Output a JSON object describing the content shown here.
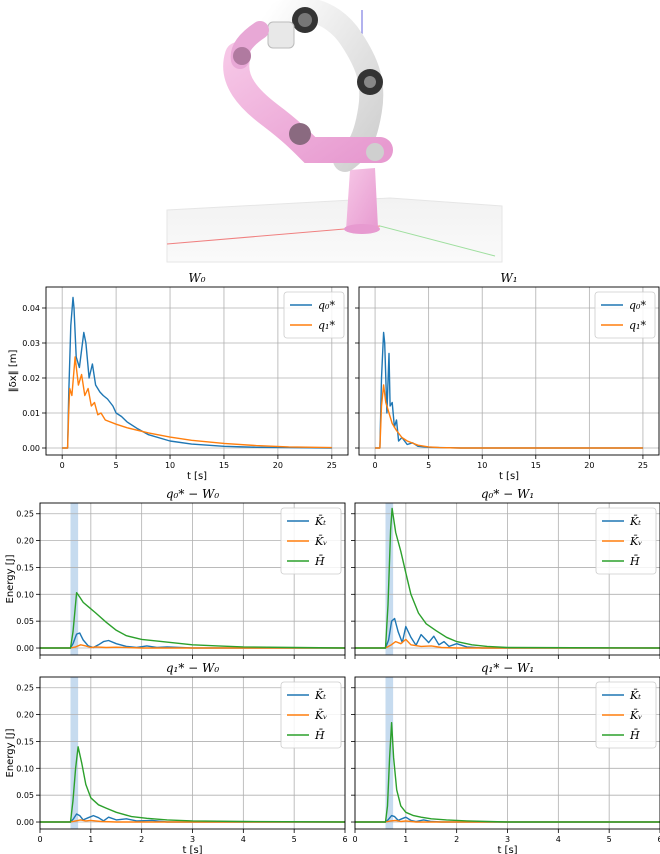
{
  "colors": {
    "blue": "#1f77b4",
    "orange": "#ff7f0e",
    "green": "#2ca02c",
    "grid": "#b0b0b0",
    "shade": "#c6dbef"
  },
  "robot_scene": {
    "icon": "robot-arm-render"
  },
  "chart_data": [
    {
      "type": "line",
      "title": "W₀",
      "ylabel": "‖δx‖ [m]",
      "xlabel": "t [s]",
      "xlim": [
        -1.5,
        26.5
      ],
      "ylim": [
        -0.002,
        0.046
      ],
      "xticks": [
        "0",
        "5",
        "10",
        "15",
        "20",
        "25"
      ],
      "yticks": [
        "0.00",
        "0.01",
        "0.02",
        "0.03",
        "0.04"
      ],
      "legend": "top-right",
      "grid": true,
      "series": [
        {
          "name": "q₀*",
          "color": "blue",
          "x": [
            0,
            0.5,
            0.6,
            0.8,
            1.0,
            1.1,
            1.3,
            1.6,
            2.0,
            2.2,
            2.5,
            2.8,
            3.1,
            3.5,
            3.8,
            4.2,
            4.7,
            5.0,
            5.5,
            6.0,
            7.0,
            8.0,
            10.0,
            12.0,
            15.0,
            18.0,
            21.0,
            25.0
          ],
          "y": [
            0,
            0,
            0.015,
            0.035,
            0.043,
            0.04,
            0.026,
            0.023,
            0.033,
            0.03,
            0.02,
            0.024,
            0.018,
            0.016,
            0.015,
            0.014,
            0.012,
            0.01,
            0.009,
            0.0075,
            0.0055,
            0.0038,
            0.002,
            0.0011,
            0.0005,
            0.0002,
            0.0001,
            0
          ]
        },
        {
          "name": "q₁*",
          "color": "orange",
          "x": [
            0,
            0.5,
            0.6,
            0.7,
            0.9,
            1.2,
            1.5,
            1.8,
            2.1,
            2.4,
            2.7,
            3.0,
            3.3,
            3.6,
            4.0,
            5.0,
            6.0,
            8.0,
            10.0,
            12.0,
            15.0,
            18.0,
            21.0,
            25.0
          ],
          "y": [
            0,
            0,
            0.01,
            0.017,
            0.015,
            0.026,
            0.018,
            0.021,
            0.015,
            0.017,
            0.012,
            0.013,
            0.0095,
            0.01,
            0.008,
            0.0068,
            0.0058,
            0.0043,
            0.0031,
            0.0022,
            0.0013,
            0.0007,
            0.0003,
            0.0001
          ]
        }
      ]
    },
    {
      "type": "line",
      "title": "W₁",
      "ylabel": "",
      "xlabel": "t [s]",
      "xlim": [
        -1.5,
        26.5
      ],
      "ylim": [
        -0.002,
        0.046
      ],
      "xticks": [
        "0",
        "5",
        "10",
        "15",
        "20",
        "25"
      ],
      "yticks": [],
      "legend": "top-right",
      "grid": true,
      "series": [
        {
          "name": "q₀*",
          "color": "blue",
          "x": [
            0,
            0.45,
            0.6,
            0.8,
            0.9,
            1.1,
            1.3,
            1.4,
            1.6,
            1.8,
            2.0,
            2.2,
            2.5,
            3.0,
            3.5,
            4.0,
            5.0,
            6.0,
            8.0,
            25.0
          ],
          "y": [
            0,
            0,
            0.02,
            0.033,
            0.03,
            0.01,
            0.027,
            0.012,
            0.013,
            0.006,
            0.008,
            0.002,
            0.003,
            0.001,
            0.0015,
            0.0005,
            0.0002,
            0.0001,
            0,
            0
          ]
        },
        {
          "name": "q₁*",
          "color": "orange",
          "x": [
            0,
            0.45,
            0.6,
            0.8,
            1.0,
            1.3,
            1.6,
            2.0,
            2.5,
            3.0,
            4.0,
            5.0,
            6.0,
            8.0,
            25.0
          ],
          "y": [
            0,
            0,
            0.012,
            0.018,
            0.013,
            0.01,
            0.007,
            0.005,
            0.003,
            0.002,
            0.0008,
            0.0003,
            0.0001,
            0,
            0
          ]
        }
      ]
    },
    {
      "type": "line",
      "title": "q₀* − W₀",
      "ylabel": "Energy [J]",
      "xlabel": "",
      "xlim": [
        0,
        6
      ],
      "ylim": [
        -0.013,
        0.27
      ],
      "xticks": [],
      "yticks": [
        "0.00",
        "0.05",
        "0.10",
        "0.15",
        "0.20",
        "0.25"
      ],
      "shaded_span": [
        0.6,
        0.75
      ],
      "legend": "top-right",
      "grid": true,
      "series": [
        {
          "name": "K̄ₜ",
          "color": "blue",
          "x": [
            0,
            0.6,
            0.65,
            0.72,
            0.78,
            0.85,
            0.95,
            1.05,
            1.15,
            1.25,
            1.35,
            1.5,
            1.7,
            1.9,
            2.1,
            2.3,
            2.5,
            3.0,
            6.0
          ],
          "y": [
            0,
            0,
            0.008,
            0.026,
            0.028,
            0.015,
            0.004,
            0.001,
            0.006,
            0.012,
            0.014,
            0.008,
            0.003,
            0.001,
            0.004,
            0.001,
            0.002,
            0,
            0
          ]
        },
        {
          "name": "K̄ᵥ",
          "color": "orange",
          "x": [
            0,
            0.6,
            0.7,
            0.8,
            0.9,
            1.0,
            1.1,
            1.3,
            1.5,
            2.0,
            6.0
          ],
          "y": [
            0,
            0,
            0.002,
            0.006,
            0.004,
            0.001,
            0.002,
            0.001,
            0.0015,
            0,
            0
          ]
        },
        {
          "name": "H̄̄",
          "color": "green",
          "x": [
            0,
            0.6,
            0.65,
            0.72,
            0.78,
            0.85,
            0.95,
            1.1,
            1.3,
            1.5,
            1.7,
            2.0,
            2.4,
            3.0,
            3.5,
            4.0,
            5.0,
            6.0
          ],
          "y": [
            0,
            0,
            0.03,
            0.103,
            0.095,
            0.085,
            0.077,
            0.065,
            0.048,
            0.033,
            0.023,
            0.016,
            0.012,
            0.006,
            0.004,
            0.002,
            0.001,
            0
          ]
        }
      ]
    },
    {
      "type": "line",
      "title": "q₀* − W₁",
      "ylabel": "",
      "xlabel": "",
      "xlim": [
        0,
        6
      ],
      "ylim": [
        -0.013,
        0.27
      ],
      "xticks": [],
      "yticks": [],
      "shaded_span": [
        0.6,
        0.75
      ],
      "legend": "top-right",
      "grid": true,
      "series": [
        {
          "name": "K̄ₜ",
          "color": "blue",
          "x": [
            0,
            0.6,
            0.66,
            0.72,
            0.78,
            0.85,
            0.93,
            1.0,
            1.1,
            1.2,
            1.3,
            1.45,
            1.55,
            1.65,
            1.75,
            1.85,
            2.0,
            2.2,
            2.5,
            6.0
          ],
          "y": [
            0,
            0,
            0.015,
            0.05,
            0.055,
            0.03,
            0.01,
            0.04,
            0.02,
            0.005,
            0.025,
            0.01,
            0.022,
            0.006,
            0.012,
            0.003,
            0.008,
            0.002,
            0,
            0
          ]
        },
        {
          "name": "K̄ᵥ",
          "color": "orange",
          "x": [
            0,
            0.6,
            0.7,
            0.8,
            0.9,
            1.0,
            1.1,
            1.3,
            1.5,
            1.7,
            2.0,
            6.0
          ],
          "y": [
            0,
            0,
            0.005,
            0.012,
            0.008,
            0.016,
            0.006,
            0.003,
            0.004,
            0.001,
            0,
            0
          ]
        },
        {
          "name": "H̄̄",
          "color": "green",
          "x": [
            0,
            0.6,
            0.65,
            0.7,
            0.73,
            0.8,
            0.9,
            1.0,
            1.1,
            1.25,
            1.4,
            1.6,
            1.8,
            2.0,
            2.3,
            2.6,
            3.0,
            6.0
          ],
          "y": [
            0,
            0,
            0.08,
            0.22,
            0.26,
            0.215,
            0.18,
            0.14,
            0.1,
            0.065,
            0.045,
            0.032,
            0.02,
            0.012,
            0.006,
            0.003,
            0.001,
            0
          ]
        }
      ]
    },
    {
      "type": "line",
      "title": "q₁* − W₀",
      "ylabel": "Energy [J]",
      "xlabel": "t [s]",
      "xlim": [
        0,
        6
      ],
      "ylim": [
        -0.013,
        0.27
      ],
      "xticks": [
        "0",
        "1",
        "2",
        "3",
        "4",
        "5",
        "6"
      ],
      "yticks": [
        "0.00",
        "0.05",
        "0.10",
        "0.15",
        "0.20",
        "0.25"
      ],
      "shaded_span": [
        0.6,
        0.75
      ],
      "legend": "top-right",
      "grid": true,
      "series": [
        {
          "name": "K̄ₜ",
          "color": "blue",
          "x": [
            0,
            0.6,
            0.66,
            0.72,
            0.78,
            0.85,
            0.95,
            1.05,
            1.15,
            1.25,
            1.35,
            1.5,
            1.7,
            1.9,
            2.2,
            2.5,
            6.0
          ],
          "y": [
            0,
            0,
            0.006,
            0.015,
            0.012,
            0.004,
            0.008,
            0.012,
            0.008,
            0.002,
            0.009,
            0.004,
            0.006,
            0.002,
            0.003,
            0,
            0
          ]
        },
        {
          "name": "K̄ᵥ",
          "color": "orange",
          "x": [
            0,
            0.6,
            0.7,
            0.8,
            0.9,
            1.0,
            1.2,
            1.5,
            6.0
          ],
          "y": [
            0,
            0,
            0.002,
            0.004,
            0.002,
            0.003,
            0.001,
            0,
            0
          ]
        },
        {
          "name": "H̄̄",
          "color": "green",
          "x": [
            0,
            0.6,
            0.65,
            0.7,
            0.75,
            0.82,
            0.9,
            1.0,
            1.15,
            1.3,
            1.5,
            1.8,
            2.1,
            2.5,
            3.0,
            4.0,
            6.0
          ],
          "y": [
            0,
            0,
            0.04,
            0.1,
            0.14,
            0.11,
            0.07,
            0.045,
            0.032,
            0.026,
            0.018,
            0.01,
            0.007,
            0.004,
            0.002,
            0.001,
            0
          ]
        }
      ]
    },
    {
      "type": "line",
      "title": "q₁* − W₁",
      "ylabel": "",
      "xlabel": "t [s]",
      "xlim": [
        0,
        6
      ],
      "ylim": [
        -0.013,
        0.27
      ],
      "xticks": [
        "0",
        "1",
        "2",
        "3",
        "4",
        "5",
        "6"
      ],
      "yticks": [],
      "shaded_span": [
        0.6,
        0.75
      ],
      "legend": "top-right",
      "grid": true,
      "series": [
        {
          "name": "K̄ₜ",
          "color": "blue",
          "x": [
            0,
            0.6,
            0.65,
            0.72,
            0.78,
            0.85,
            0.92,
            1.0,
            1.1,
            1.2,
            1.35,
            1.5,
            1.7,
            6.0
          ],
          "y": [
            0,
            0,
            0.004,
            0.012,
            0.01,
            0.003,
            0.006,
            0.009,
            0.003,
            0.001,
            0.004,
            0.001,
            0,
            0
          ]
        },
        {
          "name": "K̄ᵥ",
          "color": "orange",
          "x": [
            0,
            0.6,
            0.7,
            0.8,
            0.9,
            1.0,
            1.2,
            6.0
          ],
          "y": [
            0,
            0,
            0.002,
            0.003,
            0.001,
            0.002,
            0,
            0
          ]
        },
        {
          "name": "H̄̄",
          "color": "green",
          "x": [
            0,
            0.6,
            0.64,
            0.68,
            0.72,
            0.76,
            0.82,
            0.9,
            1.0,
            1.15,
            1.3,
            1.5,
            1.8,
            2.2,
            2.6,
            3.0,
            6.0
          ],
          "y": [
            0,
            0,
            0.03,
            0.12,
            0.185,
            0.12,
            0.06,
            0.03,
            0.018,
            0.012,
            0.009,
            0.006,
            0.004,
            0.002,
            0.001,
            0,
            0
          ]
        }
      ]
    }
  ]
}
